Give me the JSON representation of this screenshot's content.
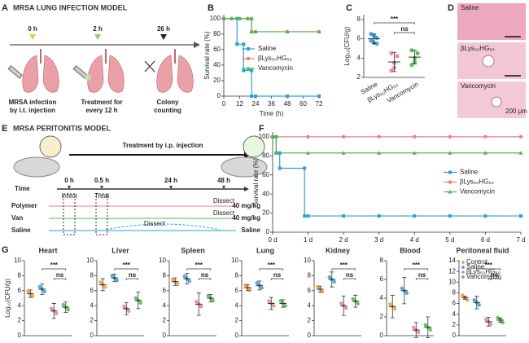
{
  "panel_labels": [
    "A",
    "B",
    "C",
    "D",
    "E",
    "F",
    "G"
  ],
  "lung_model": {
    "title": "MRSA LUNG INFECTION MODEL",
    "times": [
      "0 h",
      "2 h",
      "26 h"
    ],
    "steps": [
      [
        "MRSA infection",
        "by i.t. injection"
      ],
      [
        "Treatment for",
        "every 12 h"
      ],
      [
        "Colony",
        "counting"
      ]
    ]
  },
  "histology": {
    "labels": [
      "Saline",
      "βLys₅₀HG₅₀",
      "Vancomycin"
    ],
    "scale": "200 μm"
  },
  "peritonitis_model": {
    "title": "MRSA PERITONITIS MODEL",
    "treatment": "Treatment by  i.p. injection",
    "time_label": "Time",
    "times": [
      "0 h",
      "0.5 h",
      "24 h",
      "48 h"
    ],
    "events": [
      "Infect",
      "Treat"
    ],
    "groups": [
      {
        "name": "Polymer",
        "dose": "40 mg/kg",
        "color": "#f07b86"
      },
      {
        "name": "Van",
        "dose": "40 mg/kg",
        "color": "#4cb84c"
      },
      {
        "name": "Saline",
        "dose": "Saline",
        "color": "#2d9fd8"
      }
    ],
    "dissect": [
      "Dissect",
      "Dissect",
      "Dissect"
    ]
  },
  "g_legend": {
    "names": [
      "Control",
      "Saline",
      "βLys₅₀HG₅₀",
      "Vancomycin"
    ],
    "colors": [
      "#f39c2b",
      "#2d9fd8",
      "#f07b86",
      "#4cb84c"
    ]
  },
  "chart_data": [
    {
      "type": "line",
      "ylabel": "Survival rate (%)",
      "xlabel": "Time (h)",
      "xlim": [
        0,
        72
      ],
      "xticks": [
        0,
        12,
        24,
        36,
        48,
        60,
        72
      ],
      "ylim": [
        0,
        105
      ],
      "yticks": [
        0,
        20,
        40,
        60,
        80,
        100
      ],
      "legend": "center-right",
      "series": [
        {
          "name": "Saline",
          "color": "#2d9fd8",
          "x": [
            0,
            10,
            10,
            15,
            15,
            21,
            21,
            24,
            48,
            72
          ],
          "values": [
            100,
            100,
            67,
            67,
            33,
            33,
            0,
            0,
            0,
            0
          ]
        },
        {
          "name": "βLys₅₀HG₅₀",
          "color": "#f07b86",
          "x": [
            0,
            6,
            12,
            18,
            21,
            21,
            24,
            48,
            72
          ],
          "values": [
            100,
            100,
            100,
            100,
            100,
            83,
            83,
            83,
            83
          ]
        },
        {
          "name": "Vancomycin",
          "color": "#4cb84c",
          "x": [
            0,
            6,
            12,
            18,
            21,
            21,
            24,
            48,
            72
          ],
          "values": [
            100,
            100,
            100,
            100,
            100,
            83,
            83,
            83,
            83
          ]
        }
      ]
    },
    {
      "type": "dot",
      "ylabel": "Log₁₀(CFU/g)",
      "categories": [
        "Saline",
        "βLys₅₀HG₅₀",
        "Vancomycin"
      ],
      "colors": [
        "#2d9fd8",
        "#f07b86",
        "#4cb84c"
      ],
      "values": [
        6.0,
        3.6,
        4.1
      ],
      "errors": [
        0.5,
        1.0,
        0.7
      ],
      "points": [
        [
          6.5,
          5.6,
          6.1,
          5.8,
          6.3,
          5.5
        ],
        [
          4.5,
          3.0,
          4.2,
          2.7,
          3.5
        ],
        [
          4.8,
          3.6,
          4.5,
          3.3,
          4.0
        ]
      ],
      "ylim": [
        2,
        8.5
      ],
      "yticks": [
        2,
        4,
        6,
        8
      ],
      "annotations": [
        "***",
        "ns"
      ]
    },
    {
      "type": "line",
      "ylabel": "Survival rate (%)",
      "xlim": [
        0,
        7
      ],
      "xticks": [
        {
          "value": 0,
          "label": "0 d"
        },
        {
          "value": 1,
          "label": "1 d"
        },
        {
          "value": 2,
          "label": "2 d"
        },
        {
          "value": 3,
          "label": "3 d"
        },
        {
          "value": 4,
          "label": "4 d"
        },
        {
          "value": 5,
          "label": "5 d"
        },
        {
          "value": 6,
          "label": "6 d"
        },
        {
          "value": 7,
          "label": "7 d"
        }
      ],
      "ylim": [
        0,
        105
      ],
      "yticks": [
        0,
        20,
        40,
        60,
        80,
        100
      ],
      "legend": "center-right",
      "series": [
        {
          "name": "Saline",
          "color": "#2d9fd8",
          "x": [
            0,
            0.1,
            0.1,
            0.2,
            0.2,
            0.9,
            0.9,
            1,
            2,
            3,
            4,
            5,
            6,
            7
          ],
          "values": [
            100,
            100,
            83,
            83,
            67,
            67,
            17,
            17,
            17,
            17,
            17,
            17,
            17,
            17
          ]
        },
        {
          "name": "βLys₅₀HG₅₀",
          "color": "#f07b86",
          "x": [
            0,
            1,
            2,
            3,
            4,
            5,
            6,
            7
          ],
          "values": [
            100,
            100,
            100,
            100,
            100,
            100,
            100,
            100
          ]
        },
        {
          "name": "Vancomycin",
          "color": "#4cb84c",
          "x": [
            0,
            0.1,
            0.1,
            1,
            2,
            3,
            4,
            5,
            6,
            7
          ],
          "values": [
            100,
            100,
            83,
            83,
            83,
            83,
            83,
            83,
            83,
            83
          ]
        }
      ]
    },
    {
      "type": "dot",
      "title": "Heart",
      "ylabel": "Log₁₀(CFU/g)",
      "values": [
        5.6,
        6.2,
        3.3,
        3.8
      ],
      "errors": [
        0.5,
        0.7,
        1.0,
        0.7
      ],
      "ylim": [
        0,
        10
      ],
      "yticks": [
        0,
        2,
        4,
        6,
        8,
        10
      ],
      "annotations": [
        "***",
        "ns"
      ]
    },
    {
      "type": "dot",
      "title": "Liver",
      "values": [
        6.8,
        7.7,
        3.6,
        4.7
      ],
      "errors": [
        0.8,
        0.5,
        0.8,
        1.1
      ],
      "ylim": [
        0,
        10
      ],
      "yticks": [
        0,
        2,
        4,
        6,
        8,
        10
      ],
      "annotations": [
        "***",
        "ns"
      ]
    },
    {
      "type": "dot",
      "title": "Spleen",
      "values": [
        7.2,
        7.6,
        4.2,
        5.0
      ],
      "errors": [
        0.5,
        0.7,
        1.5,
        0.5
      ],
      "ylim": [
        0,
        10
      ],
      "yticks": [
        0,
        2,
        4,
        6,
        8,
        10
      ],
      "annotations": [
        "***",
        "ns"
      ]
    },
    {
      "type": "dot",
      "title": "Lung",
      "values": [
        6.4,
        6.7,
        4.3,
        4.3
      ],
      "errors": [
        0.4,
        0.6,
        0.8,
        0.5
      ],
      "ylim": [
        0,
        10
      ],
      "yticks": [
        0,
        2,
        4,
        6,
        8,
        10
      ],
      "annotations": [
        "***",
        "ns"
      ]
    },
    {
      "type": "dot",
      "title": "Kidney",
      "values": [
        6.2,
        7.5,
        4.0,
        4.6
      ],
      "errors": [
        0.4,
        1.0,
        1.3,
        0.8
      ],
      "ylim": [
        0,
        10
      ],
      "yticks": [
        0,
        2,
        4,
        6,
        8,
        10
      ],
      "annotations": [
        "***",
        "ns"
      ]
    },
    {
      "type": "dot",
      "title": "Blood",
      "values": [
        3.1,
        4.8,
        0.6,
        0.9
      ],
      "errors": [
        1.2,
        1.4,
        0.8,
        1.1
      ],
      "ylim": [
        0,
        8
      ],
      "yticks": [
        0,
        2,
        4,
        6,
        8
      ],
      "annotations": [
        "***",
        "ns"
      ]
    },
    {
      "type": "dot",
      "title": "Peritoneal fluid",
      "values": [
        7.1,
        6.2,
        2.6,
        2.9
      ],
      "errors": [
        0.3,
        1.2,
        0.8,
        0.4
      ],
      "ylim": [
        0,
        14
      ],
      "yticks": [
        0,
        2,
        4,
        6,
        8,
        10,
        12,
        14
      ],
      "annotations": [
        "***",
        "ns"
      ],
      "legend": "top-right"
    }
  ]
}
